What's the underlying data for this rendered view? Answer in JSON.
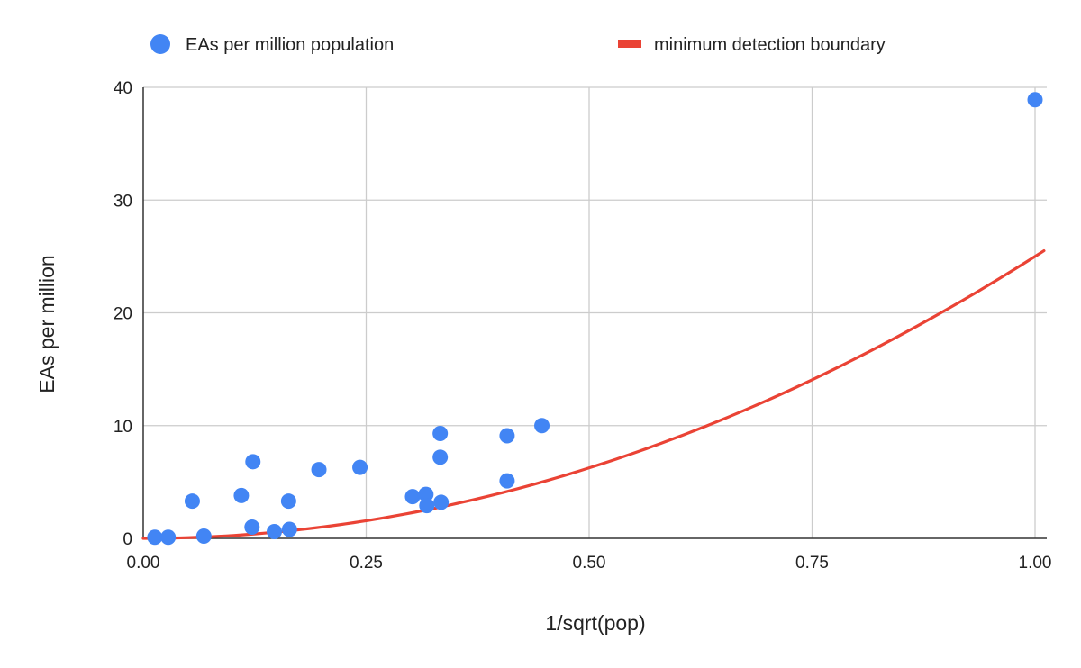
{
  "chart_data": {
    "type": "scatter",
    "title": "",
    "xlabel": "1/sqrt(pop)",
    "ylabel": "EAs per million",
    "xlim": [
      0,
      1
    ],
    "ylim": [
      0,
      40
    ],
    "x_ticks": [
      "0.00",
      "0.25",
      "0.50",
      "0.75",
      "1.00"
    ],
    "y_ticks": [
      "0",
      "10",
      "20",
      "30",
      "40"
    ],
    "grid": true,
    "legend_position": "top",
    "series": [
      {
        "name": "EAs per million population",
        "type": "scatter",
        "color": "#4285F4",
        "points": [
          [
            0.013,
            0.1
          ],
          [
            0.028,
            0.1
          ],
          [
            0.055,
            3.3
          ],
          [
            0.068,
            0.2
          ],
          [
            0.11,
            3.8
          ],
          [
            0.122,
            1.0
          ],
          [
            0.123,
            6.8
          ],
          [
            0.147,
            0.6
          ],
          [
            0.163,
            3.3
          ],
          [
            0.164,
            0.8
          ],
          [
            0.197,
            6.1
          ],
          [
            0.243,
            6.3
          ],
          [
            0.302,
            3.7
          ],
          [
            0.317,
            3.9
          ],
          [
            0.318,
            2.9
          ],
          [
            0.333,
            9.3
          ],
          [
            0.333,
            7.2
          ],
          [
            0.334,
            3.2
          ],
          [
            0.408,
            9.1
          ],
          [
            0.408,
            5.1
          ],
          [
            0.447,
            10.0
          ],
          [
            1.0,
            38.9
          ]
        ]
      },
      {
        "name": "minimum detection boundary",
        "type": "line",
        "color": "#EA4335",
        "equation": "y = 25 * x^2",
        "x_range": [
          0,
          1.01
        ]
      }
    ]
  }
}
